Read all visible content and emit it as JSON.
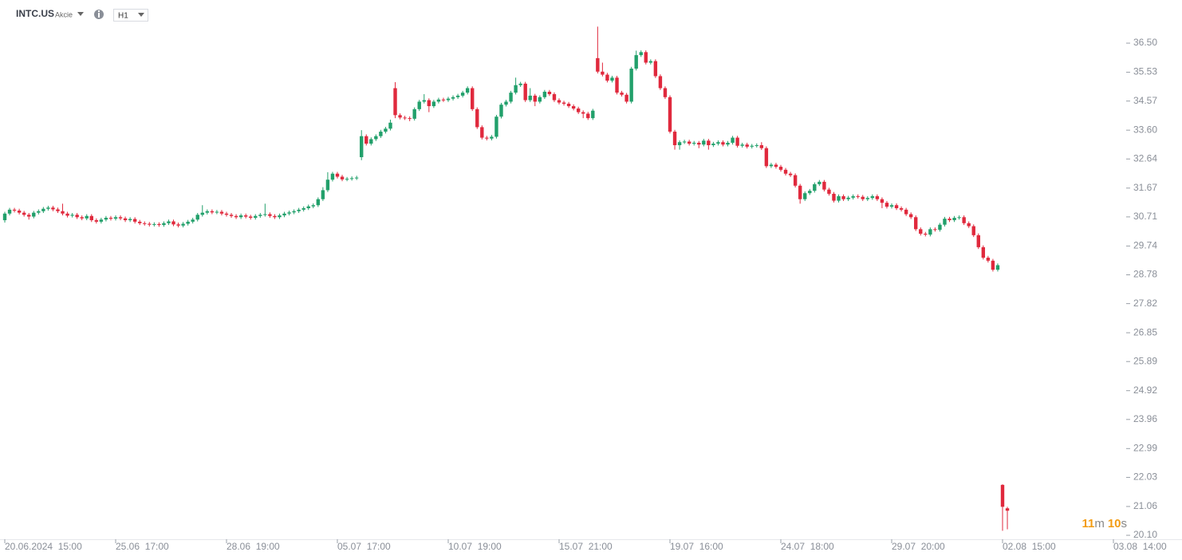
{
  "chart_data": {
    "type": "candlestick",
    "title": "INTC.US",
    "subtitle": "Akcie",
    "timeframe": "H1",
    "up_color": "#22a06b",
    "down_color": "#e0293d",
    "countdown": {
      "minutes": "11",
      "minutes_unit": "m",
      "seconds": "10",
      "seconds_unit": "s"
    },
    "ylim": [
      20.0,
      37.1
    ],
    "yticks": [
      {
        "value": 36.5,
        "label": "36.50"
      },
      35.53,
      34.57,
      {
        "value": 33.6,
        "label": "33.60"
      },
      32.64,
      31.67,
      30.71,
      29.74,
      28.78,
      27.82,
      26.85,
      25.89,
      24.92,
      23.96,
      22.99,
      22.03,
      21.06,
      {
        "value": 20.1,
        "label": "20.10"
      }
    ],
    "categories": [
      "20.06.2024  15:00",
      null,
      null,
      null,
      null,
      null,
      null,
      null,
      null,
      null,
      null,
      null,
      null,
      null,
      null,
      null,
      null,
      null,
      null,
      null,
      null,
      null,
      null,
      "25.06  17:00",
      null,
      null,
      null,
      null,
      null,
      null,
      null,
      null,
      null,
      null,
      null,
      null,
      null,
      null,
      null,
      null,
      null,
      null,
      null,
      null,
      null,
      null,
      "28.06  19:00",
      null,
      null,
      null,
      null,
      null,
      null,
      null,
      null,
      null,
      null,
      null,
      null,
      null,
      null,
      null,
      null,
      null,
      null,
      null,
      null,
      null,
      null,
      "05.07  17:00",
      null,
      null,
      null,
      null,
      null,
      null,
      null,
      null,
      null,
      null,
      null,
      null,
      null,
      null,
      null,
      null,
      null,
      null,
      null,
      null,
      null,
      null,
      "10.07  19:00",
      null,
      null,
      null,
      null,
      null,
      null,
      null,
      null,
      null,
      null,
      null,
      null,
      null,
      null,
      null,
      null,
      null,
      null,
      null,
      null,
      null,
      null,
      "15.07  21:00",
      null,
      null,
      null,
      null,
      null,
      null,
      null,
      null,
      null,
      null,
      null,
      null,
      null,
      null,
      null,
      null,
      null,
      null,
      null,
      null,
      null,
      null,
      "19.07  16:00",
      null,
      null,
      null,
      null,
      null,
      null,
      null,
      null,
      null,
      null,
      null,
      null,
      null,
      null,
      null,
      null,
      null,
      null,
      null,
      null,
      null,
      null,
      "24.07  18:00",
      null,
      null,
      null,
      null,
      null,
      null,
      null,
      null,
      null,
      null,
      null,
      null,
      null,
      null,
      null,
      null,
      null,
      null,
      null,
      null,
      null,
      null,
      "29.07  20:00",
      null,
      null,
      null,
      null,
      null,
      null,
      null,
      null,
      null,
      null,
      null,
      null,
      null,
      null,
      null,
      null,
      null,
      null,
      null,
      null,
      null,
      null,
      "02.08  15:00",
      null,
      null,
      null,
      null,
      null,
      null,
      null,
      null,
      null,
      null,
      null,
      null,
      null,
      null,
      null,
      null,
      null,
      null,
      null,
      null,
      null,
      null,
      "03.08  14:00"
    ],
    "open": [
      30.6,
      30.82,
      30.95,
      30.92,
      30.85,
      30.78,
      30.72,
      30.85,
      30.9,
      30.98,
      31.02,
      30.96,
      30.9,
      30.82,
      30.75,
      30.78,
      30.7,
      30.66,
      30.74,
      30.6,
      30.55,
      30.62,
      30.68,
      30.65,
      30.7,
      30.66,
      30.6,
      30.64,
      30.55,
      30.5,
      30.48,
      30.45,
      30.47,
      30.44,
      30.5,
      30.56,
      30.46,
      30.42,
      30.48,
      30.55,
      30.62,
      30.78,
      30.85,
      30.9,
      30.86,
      30.88,
      30.82,
      30.78,
      30.74,
      30.7,
      30.76,
      30.72,
      30.68,
      30.74,
      30.78,
      30.8,
      30.74,
      30.7,
      30.76,
      30.82,
      30.86,
      30.9,
      30.95,
      31.0,
      31.06,
      31.1,
      31.3,
      31.6,
      31.95,
      32.15,
      32.05,
      31.96,
      31.98,
      32.0,
      32.7,
      33.4,
      33.15,
      33.3,
      33.4,
      33.55,
      33.65,
      35.0,
      34.1,
      34.02,
      34.0,
      33.98,
      34.3,
      34.55,
      34.6,
      34.4,
      34.55,
      34.62,
      34.6,
      34.65,
      34.7,
      34.75,
      34.85,
      35.0,
      34.3,
      33.7,
      33.35,
      33.32,
      33.38,
      34.05,
      34.45,
      34.55,
      34.85,
      35.1,
      35.15,
      34.6,
      34.75,
      34.55,
      34.7,
      34.88,
      34.8,
      34.6,
      34.52,
      34.48,
      34.4,
      34.32,
      34.2,
      34.15,
      34.0,
      36.0,
      35.55,
      35.45,
      35.25,
      35.35,
      34.85,
      34.78,
      34.55,
      35.65,
      36.1,
      36.2,
      35.85,
      35.9,
      35.4,
      35.0,
      34.7,
      33.55,
      33.1,
      33.2,
      33.22,
      33.15,
      33.18,
      33.12,
      33.25,
      33.1,
      33.15,
      33.2,
      33.12,
      33.18,
      33.35,
      33.08,
      33.12,
      33.05,
      33.08,
      33.1,
      33.0,
      32.4,
      32.45,
      32.38,
      32.28,
      32.15,
      32.1,
      31.75,
      31.3,
      31.5,
      31.58,
      31.8,
      31.88,
      31.62,
      31.48,
      31.25,
      31.4,
      31.3,
      31.35,
      31.4,
      31.38,
      31.3,
      31.34,
      31.4,
      31.3,
      31.18,
      31.05,
      31.1,
      31.0,
      30.95,
      30.8,
      30.7,
      30.3,
      30.15,
      30.12,
      30.3,
      30.28,
      30.45,
      30.65,
      30.6,
      30.68,
      30.7,
      30.5,
      30.4,
      30.1,
      29.7,
      29.35,
      29.25,
      28.95,
      21.78,
      21.0,
      null,
      null,
      null,
      null,
      null,
      null,
      null,
      null,
      null,
      null,
      null,
      null,
      null,
      null,
      null,
      null,
      null,
      null,
      null,
      null,
      null,
      null
    ],
    "close": [
      30.82,
      30.95,
      30.92,
      30.85,
      30.78,
      30.72,
      30.85,
      30.9,
      30.98,
      31.02,
      30.96,
      30.9,
      30.82,
      30.75,
      30.78,
      30.7,
      30.66,
      30.74,
      30.6,
      30.55,
      30.62,
      30.68,
      30.65,
      30.7,
      30.66,
      30.6,
      30.64,
      30.55,
      30.5,
      30.48,
      30.45,
      30.47,
      30.44,
      30.5,
      30.56,
      30.46,
      30.42,
      30.48,
      30.55,
      30.62,
      30.78,
      30.85,
      30.9,
      30.86,
      30.88,
      30.82,
      30.78,
      30.74,
      30.7,
      30.76,
      30.72,
      30.68,
      30.74,
      30.78,
      30.8,
      30.74,
      30.7,
      30.76,
      30.82,
      30.86,
      30.9,
      30.95,
      31.0,
      31.06,
      31.1,
      31.3,
      31.6,
      31.95,
      32.15,
      32.05,
      31.96,
      31.98,
      32.0,
      32.02,
      33.4,
      33.15,
      33.3,
      33.4,
      33.55,
      33.65,
      33.85,
      34.1,
      34.02,
      34.0,
      33.98,
      34.3,
      34.55,
      34.6,
      34.4,
      34.55,
      34.62,
      34.6,
      34.65,
      34.7,
      34.75,
      34.85,
      35.0,
      34.3,
      33.7,
      33.35,
      33.32,
      33.38,
      34.05,
      34.45,
      34.55,
      34.85,
      35.1,
      35.15,
      34.6,
      34.75,
      34.55,
      34.7,
      34.88,
      34.8,
      34.6,
      34.52,
      34.48,
      34.4,
      34.32,
      34.2,
      34.15,
      34.0,
      34.25,
      35.55,
      35.45,
      35.25,
      35.35,
      34.85,
      34.78,
      34.55,
      35.65,
      36.1,
      36.2,
      35.85,
      35.9,
      35.4,
      35.0,
      34.7,
      33.55,
      33.1,
      33.2,
      33.22,
      33.15,
      33.18,
      33.12,
      33.25,
      33.1,
      33.15,
      33.2,
      33.12,
      33.18,
      33.35,
      33.08,
      33.12,
      33.05,
      33.08,
      33.1,
      33.0,
      32.4,
      32.45,
      32.38,
      32.28,
      32.15,
      32.1,
      31.75,
      31.3,
      31.5,
      31.58,
      31.8,
      31.88,
      31.62,
      31.48,
      31.25,
      31.4,
      31.3,
      31.35,
      31.4,
      31.38,
      31.3,
      31.34,
      31.4,
      31.3,
      31.18,
      31.05,
      31.1,
      31.0,
      30.95,
      30.8,
      30.7,
      30.3,
      30.15,
      30.12,
      30.3,
      30.28,
      30.45,
      30.65,
      30.6,
      30.68,
      30.7,
      30.5,
      30.4,
      30.1,
      29.7,
      29.35,
      29.25,
      28.95,
      29.1,
      21.05,
      20.92,
      null,
      null,
      null,
      null,
      null,
      null,
      null,
      null,
      null,
      null,
      null,
      null,
      null,
      null,
      null,
      null,
      null,
      null,
      null,
      null,
      null,
      null
    ],
    "high": [
      30.88,
      31.01,
      31.01,
      30.98,
      30.91,
      30.84,
      30.91,
      30.96,
      31.04,
      31.08,
      31.08,
      31.02,
      31.15,
      30.88,
      30.84,
      30.84,
      30.76,
      30.8,
      30.8,
      30.66,
      30.68,
      30.74,
      30.74,
      30.76,
      30.76,
      30.72,
      30.7,
      30.7,
      30.61,
      30.56,
      30.54,
      30.53,
      30.53,
      30.56,
      30.62,
      30.62,
      30.52,
      30.54,
      30.61,
      30.68,
      30.84,
      31.1,
      30.96,
      30.96,
      30.94,
      30.94,
      30.88,
      30.84,
      30.8,
      30.82,
      30.82,
      30.78,
      30.8,
      30.84,
      31.15,
      30.86,
      30.8,
      30.82,
      30.88,
      30.92,
      30.96,
      31.01,
      31.06,
      31.12,
      31.16,
      31.36,
      31.7,
      32.2,
      32.21,
      32.21,
      32.11,
      32.04,
      32.06,
      32.08,
      33.6,
      33.46,
      33.36,
      33.46,
      33.61,
      33.71,
      33.95,
      35.2,
      34.16,
      34.08,
      34.06,
      34.36,
      34.61,
      34.8,
      34.66,
      34.61,
      34.68,
      34.68,
      34.71,
      34.76,
      34.81,
      34.91,
      35.06,
      35.06,
      34.36,
      33.76,
      33.41,
      33.44,
      34.11,
      34.51,
      34.61,
      34.91,
      35.35,
      35.21,
      35.21,
      35.0,
      34.81,
      34.76,
      34.94,
      34.94,
      34.86,
      34.66,
      34.58,
      34.54,
      34.46,
      34.38,
      34.26,
      34.21,
      34.31,
      37.05,
      35.85,
      35.51,
      35.41,
      35.41,
      34.91,
      34.84,
      35.71,
      36.25,
      36.26,
      36.26,
      35.96,
      35.96,
      35.46,
      35.06,
      34.76,
      33.61,
      33.26,
      33.28,
      33.28,
      33.24,
      33.24,
      33.31,
      33.31,
      33.21,
      33.26,
      33.26,
      33.24,
      33.41,
      33.41,
      33.18,
      33.18,
      33.14,
      33.16,
      33.2,
      33.06,
      32.51,
      32.51,
      32.44,
      32.34,
      32.21,
      32.16,
      31.81,
      31.56,
      31.64,
      31.86,
      31.94,
      31.94,
      31.68,
      31.54,
      31.46,
      31.46,
      31.41,
      31.46,
      31.46,
      31.44,
      31.4,
      31.46,
      31.46,
      31.36,
      31.24,
      31.16,
      31.16,
      31.06,
      31.01,
      30.86,
      30.76,
      30.36,
      30.21,
      30.36,
      30.36,
      30.51,
      30.71,
      30.71,
      30.74,
      30.76,
      30.76,
      30.56,
      30.46,
      30.16,
      29.76,
      29.41,
      29.31,
      29.16,
      21.8,
      21.05,
      null,
      null,
      null,
      null,
      null,
      null,
      null,
      null,
      null,
      null,
      null,
      null,
      null,
      null,
      null,
      null,
      null,
      null,
      null,
      null,
      null,
      null
    ],
    "low": [
      30.52,
      30.76,
      30.86,
      30.79,
      30.72,
      30.62,
      30.66,
      30.79,
      30.84,
      30.92,
      30.9,
      30.84,
      30.76,
      30.69,
      30.69,
      30.64,
      30.6,
      30.6,
      30.54,
      30.49,
      30.49,
      30.56,
      30.59,
      30.59,
      30.6,
      30.54,
      30.54,
      30.49,
      30.44,
      30.42,
      30.39,
      30.39,
      30.38,
      30.38,
      30.44,
      30.4,
      30.36,
      30.36,
      30.42,
      30.49,
      30.56,
      30.72,
      30.79,
      30.8,
      30.8,
      30.76,
      30.72,
      30.68,
      30.64,
      30.64,
      30.66,
      30.62,
      30.62,
      30.68,
      30.72,
      30.68,
      30.64,
      30.64,
      30.7,
      30.76,
      30.8,
      30.84,
      30.89,
      30.94,
      31.0,
      31.04,
      31.24,
      31.54,
      31.89,
      31.99,
      31.9,
      31.9,
      31.92,
      31.94,
      32.6,
      33.09,
      33.09,
      33.24,
      33.34,
      33.49,
      33.59,
      34.0,
      33.96,
      33.94,
      33.9,
      33.92,
      34.24,
      34.49,
      34.2,
      34.34,
      34.49,
      34.54,
      34.54,
      34.59,
      34.64,
      34.69,
      34.79,
      34.24,
      33.64,
      33.29,
      33.26,
      33.26,
      33.32,
      33.99,
      34.39,
      34.49,
      34.79,
      35.04,
      34.54,
      34.54,
      34.4,
      34.49,
      34.64,
      34.74,
      34.54,
      34.46,
      34.42,
      34.34,
      34.26,
      34.14,
      34.0,
      33.94,
      33.94,
      35.49,
      35.39,
      35.19,
      35.19,
      34.79,
      34.72,
      34.49,
      34.49,
      35.59,
      36.04,
      35.79,
      35.79,
      35.34,
      34.94,
      34.64,
      33.49,
      32.95,
      32.95,
      33.14,
      33.09,
      33.09,
      33.0,
      33.06,
      32.95,
      33.04,
      33.09,
      33.06,
      33.06,
      33.12,
      33.02,
      33.02,
      32.99,
      32.99,
      33.02,
      32.94,
      32.34,
      32.34,
      32.32,
      32.22,
      32.09,
      32.04,
      31.69,
      31.15,
      31.24,
      31.44,
      31.52,
      31.74,
      31.56,
      31.42,
      31.19,
      31.19,
      31.24,
      31.24,
      31.29,
      31.32,
      31.24,
      31.24,
      31.28,
      31.24,
      31.0,
      30.99,
      30.99,
      30.94,
      30.89,
      30.74,
      30.64,
      30.24,
      30.09,
      30.06,
      30.06,
      30.22,
      30.22,
      30.39,
      30.54,
      30.54,
      30.62,
      30.44,
      30.34,
      30.04,
      29.64,
      29.29,
      29.19,
      28.89,
      28.89,
      20.25,
      20.3,
      null,
      null,
      null,
      null,
      null,
      null,
      null,
      null,
      null,
      null,
      null,
      null,
      null,
      null,
      null,
      null,
      null,
      null,
      null,
      null,
      null,
      null
    ]
  }
}
